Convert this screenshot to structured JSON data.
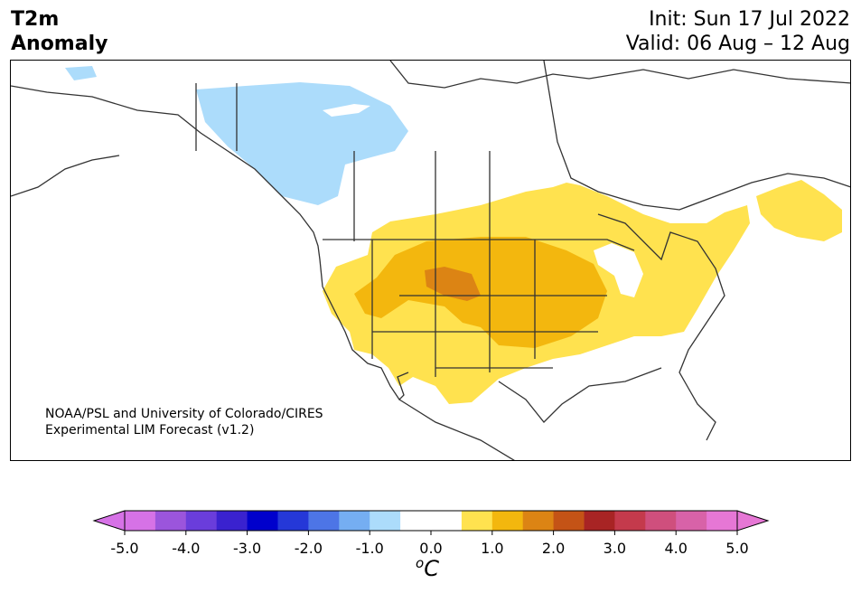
{
  "header": {
    "title_line1": "T2m",
    "title_line2": "Anomaly",
    "init": "Init: Sun 17 Jul 2022",
    "valid": "Valid: 06 Aug – 12 Aug"
  },
  "credit": {
    "line1": "NOAA/PSL and University of Colorado/CIRES",
    "line2": "Experimental LIM Forecast (v1.2)"
  },
  "colorbar": {
    "unit_base": "C",
    "unit_sup": "o",
    "colors": [
      "#d672e6",
      "#9b55dc",
      "#6a3ddb",
      "#3a22cf",
      "#0000cc",
      "#2538d8",
      "#4d75e6",
      "#75aef2",
      "#acdcfb",
      "#ffffff",
      "#ffffff",
      "#ffe24f",
      "#f3b70e",
      "#dc8414",
      "#c45316",
      "#a82424",
      "#c43a4c",
      "#cf4f7d",
      "#d862a8",
      "#e677d5"
    ],
    "left_extend_color": "#d672e6",
    "right_extend_color": "#e677d5",
    "ticks": [
      "-5.0",
      "-4.0",
      "-3.0",
      "-2.0",
      "-1.0",
      "0.0",
      "1.0",
      "2.0",
      "3.0",
      "4.0",
      "5.0"
    ]
  },
  "map_colors": {
    "cold_anomaly": "#acdcfb",
    "warm_1": "#ffe24f",
    "warm_2": "#f3b70e",
    "warm_3": "#dc8414",
    "coastline": "#333333"
  }
}
